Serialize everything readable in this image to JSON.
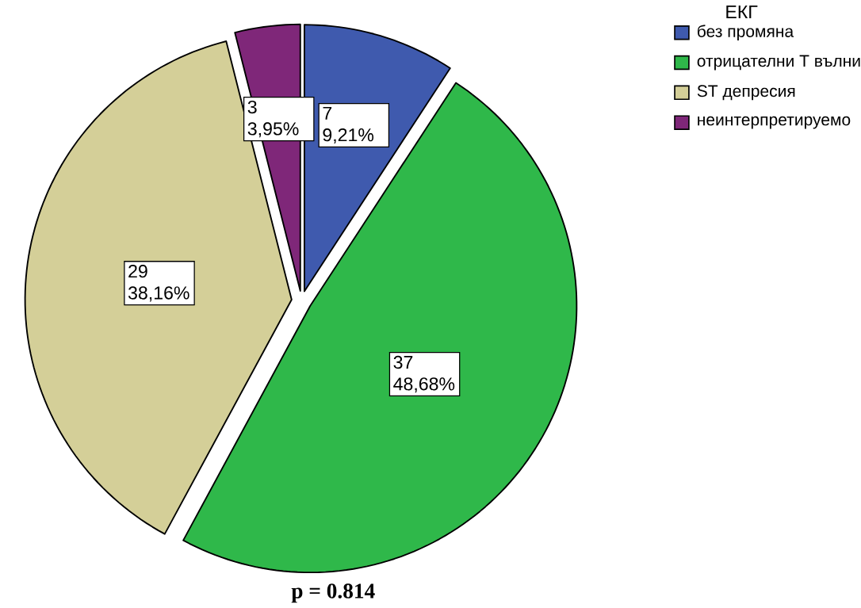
{
  "chart_data": {
    "type": "pie",
    "legend_title": "ЕКГ",
    "legend": "top right",
    "categories": [
      "без промяна",
      "отрицателни Т вълни",
      "ST депресия",
      "неинтерпретируемо"
    ],
    "values": [
      7,
      37,
      29,
      3
    ],
    "colors": [
      "#3f5aae",
      "#2fb84a",
      "#d4cf98",
      "#7f2779"
    ],
    "value_labels": [
      "7 9,21%",
      "37 48,68%",
      "29 38,16%",
      "3 3,95%"
    ],
    "annotations": [
      "p = 0.814"
    ]
  }
}
